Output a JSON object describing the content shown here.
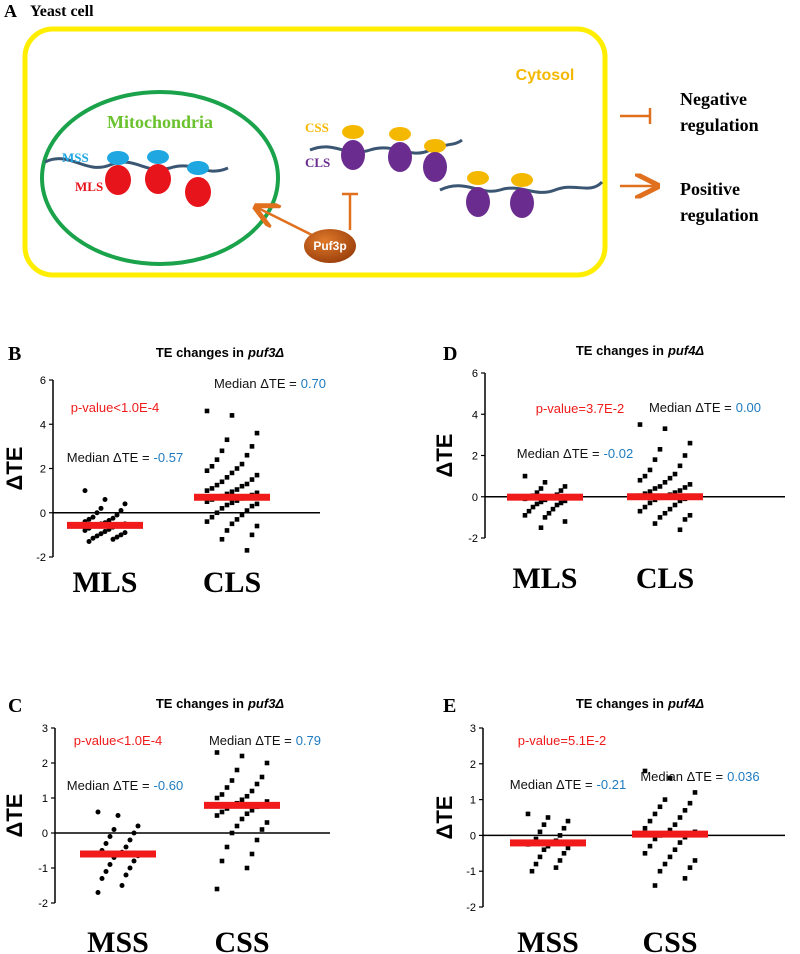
{
  "diagram": {
    "panel": "A",
    "cell": "Yeast cell",
    "cytosol": "Cytosol",
    "mitochondria": "Mitochondria",
    "mss": "MSS",
    "mls": "MLS",
    "css": "CSS",
    "cls": "CLS",
    "protein": "Puf3p",
    "negative": [
      "Negative",
      "regulation"
    ],
    "positive": [
      "Positive",
      "regulation"
    ]
  },
  "chart_data": [
    {
      "type": "strip",
      "panel": "B",
      "title": "TE changes in",
      "title_strain": "puf3Δ",
      "ylabel": "ΔTE",
      "categories": [
        "MLS",
        "CLS"
      ],
      "ylim": [
        -2,
        6
      ],
      "yticks": [
        -2,
        0,
        2,
        4,
        6
      ],
      "p_value": "p-value<1.0E-4",
      "median_prefix": "Median ΔTE =",
      "medians": [
        -0.57,
        0.7
      ],
      "median_labels": [
        "-0.57",
        "0.70"
      ],
      "groups": [
        {
          "marker": "circle",
          "values": [
            1.0,
            0.6,
            0.4,
            0.2,
            0.1,
            0.0,
            -0.1,
            -0.2,
            -0.25,
            -0.3,
            -0.35,
            -0.4,
            -0.45,
            -0.5,
            -0.5,
            -0.55,
            -0.57,
            -0.6,
            -0.6,
            -0.65,
            -0.7,
            -0.75,
            -0.8,
            -0.85,
            -0.9,
            -0.95,
            -1.0,
            -1.05,
            -1.1,
            -1.15,
            -1.2,
            -1.3
          ]
        },
        {
          "marker": "square",
          "values": [
            4.6,
            4.4,
            3.6,
            3.3,
            3.0,
            2.8,
            2.6,
            2.4,
            2.2,
            2.1,
            2.0,
            1.9,
            1.8,
            1.7,
            1.6,
            1.5,
            1.4,
            1.3,
            1.25,
            1.2,
            1.1,
            1.05,
            1.0,
            0.95,
            0.9,
            0.85,
            0.8,
            0.75,
            0.7,
            0.7,
            0.65,
            0.6,
            0.55,
            0.5,
            0.45,
            0.4,
            0.35,
            0.3,
            0.2,
            0.1,
            0.0,
            -0.1,
            -0.2,
            -0.3,
            -0.4,
            -0.5,
            -0.6,
            -0.8,
            -1.0,
            -1.2,
            -1.7
          ]
        }
      ]
    },
    {
      "type": "strip",
      "panel": "D",
      "title": "TE changes in",
      "title_strain": "puf4Δ",
      "ylabel": "ΔTE",
      "categories": [
        "MLS",
        "CLS"
      ],
      "ylim": [
        -2,
        6
      ],
      "yticks": [
        -2,
        0,
        2,
        4,
        6
      ],
      "p_value": "p-value=3.7E-2",
      "median_prefix": "Median ΔTE  =",
      "medians": [
        -0.02,
        0.0
      ],
      "median_labels": [
        "-0.02",
        "0.00"
      ],
      "groups": [
        {
          "marker": "square",
          "values": [
            1.0,
            0.7,
            0.5,
            0.4,
            0.3,
            0.2,
            0.1,
            0.05,
            0.0,
            -0.02,
            -0.05,
            -0.1,
            -0.15,
            -0.2,
            -0.25,
            -0.3,
            -0.35,
            -0.4,
            -0.5,
            -0.6,
            -0.7,
            -0.8,
            -0.9,
            -1.0,
            -1.2,
            -1.5
          ]
        },
        {
          "marker": "square",
          "values": [
            3.5,
            3.3,
            2.6,
            2.3,
            2.0,
            1.8,
            1.5,
            1.3,
            1.1,
            1.0,
            0.9,
            0.8,
            0.7,
            0.6,
            0.5,
            0.45,
            0.4,
            0.3,
            0.25,
            0.2,
            0.15,
            0.1,
            0.05,
            0.0,
            0.0,
            -0.05,
            -0.1,
            -0.15,
            -0.2,
            -0.3,
            -0.4,
            -0.5,
            -0.6,
            -0.7,
            -0.8,
            -0.9,
            -1.0,
            -1.1,
            -1.3,
            -1.6
          ]
        }
      ]
    },
    {
      "type": "strip",
      "panel": "C",
      "title": "TE changes in",
      "title_strain": "puf3Δ",
      "ylabel": "ΔTE",
      "categories": [
        "MSS",
        "CSS"
      ],
      "ylim": [
        -2,
        3
      ],
      "yticks": [
        -2,
        -1,
        0,
        1,
        2,
        3
      ],
      "p_value": "p-value<1.0E-4",
      "median_prefix": "Median ΔTE =",
      "medians": [
        -0.6,
        0.79
      ],
      "median_labels": [
        "-0.60",
        "0.79"
      ],
      "groups": [
        {
          "marker": "circle",
          "values": [
            0.6,
            0.5,
            0.2,
            0.1,
            0.0,
            -0.1,
            -0.2,
            -0.3,
            -0.4,
            -0.5,
            -0.55,
            -0.6,
            -0.6,
            -0.65,
            -0.7,
            -0.8,
            -0.9,
            -1.0,
            -1.1,
            -1.2,
            -1.3,
            -1.5,
            -1.7
          ]
        },
        {
          "marker": "square",
          "values": [
            2.3,
            2.2,
            2.0,
            1.8,
            1.6,
            1.5,
            1.4,
            1.3,
            1.2,
            1.1,
            1.05,
            1.0,
            0.95,
            0.9,
            0.85,
            0.8,
            0.79,
            0.75,
            0.7,
            0.65,
            0.6,
            0.55,
            0.5,
            0.4,
            0.3,
            0.2,
            0.1,
            0.0,
            -0.2,
            -0.4,
            -0.6,
            -0.8,
            -1.0,
            -1.6
          ]
        }
      ]
    },
    {
      "type": "strip",
      "panel": "E",
      "title": "TE changes in",
      "title_strain": "puf4Δ",
      "ylabel": "ΔTE",
      "categories": [
        "MSS",
        "CSS"
      ],
      "ylim": [
        -2,
        3
      ],
      "yticks": [
        -2,
        -1,
        0,
        1,
        2,
        3
      ],
      "p_value": "p-value=5.1E-2",
      "median_prefix": "Median ΔTE  =",
      "medians": [
        -0.21,
        0.036
      ],
      "median_labels": [
        "-0.21",
        "0.036"
      ],
      "groups": [
        {
          "marker": "square",
          "values": [
            0.6,
            0.5,
            0.4,
            0.3,
            0.2,
            0.1,
            0.0,
            -0.1,
            -0.15,
            -0.2,
            -0.21,
            -0.25,
            -0.3,
            -0.35,
            -0.4,
            -0.5,
            -0.6,
            -0.7,
            -0.8,
            -0.9,
            -1.0
          ]
        },
        {
          "marker": "square",
          "values": [
            1.8,
            1.6,
            1.2,
            1.0,
            0.9,
            0.8,
            0.7,
            0.6,
            0.5,
            0.4,
            0.3,
            0.2,
            0.15,
            0.1,
            0.05,
            0.036,
            0.0,
            -0.05,
            -0.1,
            -0.2,
            -0.3,
            -0.4,
            -0.5,
            -0.6,
            -0.7,
            -0.8,
            -0.9,
            -1.0,
            -1.2,
            -1.4
          ]
        }
      ]
    }
  ]
}
